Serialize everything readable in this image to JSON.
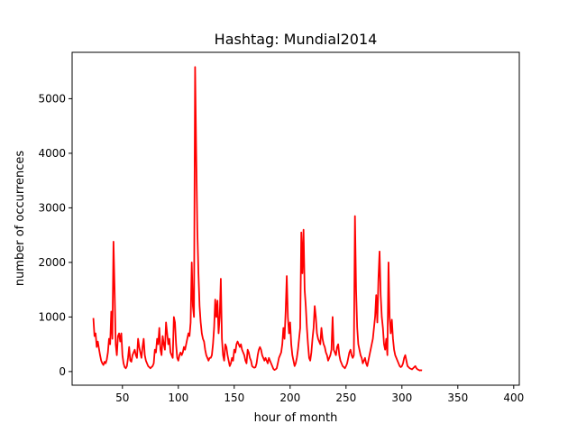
{
  "chart_data": {
    "type": "line",
    "title": "Hashtag: Mundial2014",
    "xlabel": "hour of month",
    "ylabel": "number of occurrences",
    "xlim": [
      5,
      405
    ],
    "ylim": [
      -250,
      5850
    ],
    "xticks": [
      50,
      100,
      150,
      200,
      250,
      300,
      350,
      400
    ],
    "yticks": [
      0,
      1000,
      2000,
      3000,
      4000,
      5000
    ],
    "grid": false,
    "series": [
      {
        "color": "#ff0000",
        "points": [
          [
            24,
            980
          ],
          [
            25,
            650
          ],
          [
            26,
            700
          ],
          [
            27,
            450
          ],
          [
            28,
            550
          ],
          [
            29,
            420
          ],
          [
            30,
            300
          ],
          [
            31,
            200
          ],
          [
            32,
            150
          ],
          [
            33,
            120
          ],
          [
            34,
            180
          ],
          [
            35,
            150
          ],
          [
            36,
            220
          ],
          [
            37,
            350
          ],
          [
            38,
            600
          ],
          [
            39,
            500
          ],
          [
            40,
            1100
          ],
          [
            41,
            600
          ],
          [
            42,
            2380
          ],
          [
            43,
            1500
          ],
          [
            44,
            500
          ],
          [
            45,
            300
          ],
          [
            46,
            650
          ],
          [
            47,
            700
          ],
          [
            48,
            550
          ],
          [
            49,
            700
          ],
          [
            50,
            300
          ],
          [
            51,
            150
          ],
          [
            52,
            80
          ],
          [
            53,
            60
          ],
          [
            54,
            100
          ],
          [
            55,
            250
          ],
          [
            56,
            450
          ],
          [
            57,
            200
          ],
          [
            58,
            180
          ],
          [
            59,
            300
          ],
          [
            60,
            350
          ],
          [
            61,
            400
          ],
          [
            62,
            300
          ],
          [
            63,
            250
          ],
          [
            64,
            600
          ],
          [
            65,
            450
          ],
          [
            66,
            350
          ],
          [
            67,
            250
          ],
          [
            68,
            450
          ],
          [
            69,
            600
          ],
          [
            70,
            300
          ],
          [
            71,
            200
          ],
          [
            72,
            150
          ],
          [
            73,
            100
          ],
          [
            74,
            80
          ],
          [
            75,
            60
          ],
          [
            76,
            80
          ],
          [
            77,
            100
          ],
          [
            78,
            150
          ],
          [
            79,
            400
          ],
          [
            80,
            350
          ],
          [
            81,
            600
          ],
          [
            82,
            500
          ],
          [
            83,
            800
          ],
          [
            84,
            400
          ],
          [
            85,
            300
          ],
          [
            86,
            650
          ],
          [
            87,
            500
          ],
          [
            88,
            400
          ],
          [
            89,
            900
          ],
          [
            90,
            700
          ],
          [
            91,
            500
          ],
          [
            92,
            600
          ],
          [
            93,
            350
          ],
          [
            94,
            300
          ],
          [
            95,
            250
          ],
          [
            96,
            1000
          ],
          [
            97,
            900
          ],
          [
            98,
            500
          ],
          [
            99,
            250
          ],
          [
            100,
            200
          ],
          [
            101,
            300
          ],
          [
            102,
            350
          ],
          [
            103,
            300
          ],
          [
            104,
            350
          ],
          [
            105,
            450
          ],
          [
            106,
            400
          ],
          [
            107,
            500
          ],
          [
            108,
            600
          ],
          [
            109,
            700
          ],
          [
            110,
            650
          ],
          [
            111,
            900
          ],
          [
            112,
            2000
          ],
          [
            113,
            1200
          ],
          [
            114,
            1000
          ],
          [
            115,
            5580
          ],
          [
            116,
            4000
          ],
          [
            117,
            2600
          ],
          [
            118,
            1800
          ],
          [
            119,
            1200
          ],
          [
            120,
            900
          ],
          [
            121,
            700
          ],
          [
            122,
            600
          ],
          [
            123,
            550
          ],
          [
            124,
            400
          ],
          [
            125,
            300
          ],
          [
            126,
            250
          ],
          [
            127,
            200
          ],
          [
            128,
            250
          ],
          [
            129,
            250
          ],
          [
            130,
            300
          ],
          [
            131,
            500
          ],
          [
            132,
            800
          ],
          [
            133,
            1320
          ],
          [
            134,
            1000
          ],
          [
            135,
            1300
          ],
          [
            136,
            700
          ],
          [
            137,
            1000
          ],
          [
            138,
            1700
          ],
          [
            139,
            600
          ],
          [
            140,
            300
          ],
          [
            141,
            200
          ],
          [
            142,
            500
          ],
          [
            143,
            450
          ],
          [
            144,
            300
          ],
          [
            145,
            200
          ],
          [
            146,
            100
          ],
          [
            147,
            150
          ],
          [
            148,
            250
          ],
          [
            149,
            200
          ],
          [
            150,
            400
          ],
          [
            151,
            350
          ],
          [
            152,
            500
          ],
          [
            153,
            550
          ],
          [
            154,
            500
          ],
          [
            155,
            450
          ],
          [
            156,
            500
          ],
          [
            157,
            400
          ],
          [
            158,
            350
          ],
          [
            159,
            300
          ],
          [
            160,
            200
          ],
          [
            161,
            150
          ],
          [
            162,
            400
          ],
          [
            163,
            350
          ],
          [
            164,
            250
          ],
          [
            165,
            200
          ],
          [
            166,
            100
          ],
          [
            167,
            80
          ],
          [
            168,
            70
          ],
          [
            169,
            80
          ],
          [
            170,
            150
          ],
          [
            171,
            300
          ],
          [
            172,
            400
          ],
          [
            173,
            450
          ],
          [
            174,
            400
          ],
          [
            175,
            300
          ],
          [
            176,
            250
          ],
          [
            177,
            200
          ],
          [
            178,
            250
          ],
          [
            179,
            200
          ],
          [
            180,
            150
          ],
          [
            181,
            250
          ],
          [
            182,
            200
          ],
          [
            183,
            150
          ],
          [
            184,
            100
          ],
          [
            185,
            50
          ],
          [
            186,
            30
          ],
          [
            187,
            40
          ],
          [
            188,
            60
          ],
          [
            189,
            150
          ],
          [
            190,
            250
          ],
          [
            191,
            300
          ],
          [
            192,
            350
          ],
          [
            193,
            500
          ],
          [
            194,
            800
          ],
          [
            195,
            600
          ],
          [
            196,
            1100
          ],
          [
            197,
            1750
          ],
          [
            198,
            1000
          ],
          [
            199,
            700
          ],
          [
            200,
            900
          ],
          [
            201,
            500
          ],
          [
            202,
            300
          ],
          [
            203,
            200
          ],
          [
            204,
            100
          ],
          [
            205,
            150
          ],
          [
            206,
            250
          ],
          [
            207,
            400
          ],
          [
            208,
            600
          ],
          [
            209,
            800
          ],
          [
            210,
            2550
          ],
          [
            211,
            1800
          ],
          [
            212,
            2600
          ],
          [
            213,
            1500
          ],
          [
            214,
            1200
          ],
          [
            215,
            800
          ],
          [
            216,
            500
          ],
          [
            217,
            250
          ],
          [
            218,
            200
          ],
          [
            219,
            350
          ],
          [
            220,
            600
          ],
          [
            221,
            800
          ],
          [
            222,
            1200
          ],
          [
            223,
            1000
          ],
          [
            224,
            700
          ],
          [
            225,
            600
          ],
          [
            226,
            550
          ],
          [
            227,
            500
          ],
          [
            228,
            800
          ],
          [
            229,
            600
          ],
          [
            230,
            500
          ],
          [
            231,
            450
          ],
          [
            232,
            350
          ],
          [
            233,
            300
          ],
          [
            234,
            200
          ],
          [
            235,
            250
          ],
          [
            236,
            300
          ],
          [
            237,
            400
          ],
          [
            238,
            1000
          ],
          [
            239,
            400
          ],
          [
            240,
            350
          ],
          [
            241,
            300
          ],
          [
            242,
            450
          ],
          [
            243,
            500
          ],
          [
            244,
            300
          ],
          [
            245,
            200
          ],
          [
            246,
            150
          ],
          [
            247,
            100
          ],
          [
            248,
            80
          ],
          [
            249,
            60
          ],
          [
            250,
            100
          ],
          [
            251,
            150
          ],
          [
            252,
            250
          ],
          [
            253,
            350
          ],
          [
            254,
            400
          ],
          [
            255,
            300
          ],
          [
            256,
            250
          ],
          [
            257,
            300
          ],
          [
            258,
            2850
          ],
          [
            259,
            1500
          ],
          [
            260,
            800
          ],
          [
            261,
            500
          ],
          [
            262,
            400
          ],
          [
            263,
            300
          ],
          [
            264,
            250
          ],
          [
            265,
            150
          ],
          [
            266,
            200
          ],
          [
            267,
            250
          ],
          [
            268,
            150
          ],
          [
            269,
            100
          ],
          [
            270,
            200
          ],
          [
            271,
            300
          ],
          [
            272,
            400
          ],
          [
            273,
            500
          ],
          [
            274,
            600
          ],
          [
            275,
            800
          ],
          [
            276,
            1000
          ],
          [
            277,
            1400
          ],
          [
            278,
            900
          ],
          [
            279,
            1700
          ],
          [
            280,
            2200
          ],
          [
            281,
            1400
          ],
          [
            282,
            1000
          ],
          [
            283,
            800
          ],
          [
            284,
            500
          ],
          [
            285,
            400
          ],
          [
            286,
            600
          ],
          [
            287,
            300
          ],
          [
            288,
            2000
          ],
          [
            289,
            1000
          ],
          [
            290,
            700
          ],
          [
            291,
            950
          ],
          [
            292,
            600
          ],
          [
            293,
            400
          ],
          [
            294,
            300
          ],
          [
            295,
            250
          ],
          [
            296,
            200
          ],
          [
            297,
            150
          ],
          [
            298,
            100
          ],
          [
            299,
            80
          ],
          [
            300,
            100
          ],
          [
            301,
            150
          ],
          [
            302,
            250
          ],
          [
            303,
            300
          ],
          [
            304,
            200
          ],
          [
            305,
            100
          ],
          [
            306,
            80
          ],
          [
            307,
            60
          ],
          [
            308,
            50
          ],
          [
            309,
            40
          ],
          [
            310,
            60
          ],
          [
            311,
            80
          ],
          [
            312,
            100
          ],
          [
            313,
            60
          ],
          [
            314,
            40
          ],
          [
            315,
            30
          ],
          [
            316,
            20
          ],
          [
            317,
            25
          ],
          [
            318,
            20
          ]
        ]
      }
    ]
  }
}
